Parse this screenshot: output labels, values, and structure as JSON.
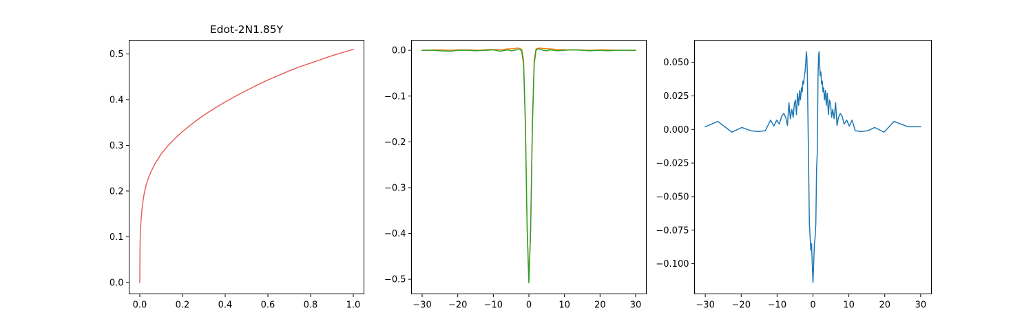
{
  "chart_data": [
    {
      "type": "line",
      "title": "Edot-2N1.85Y",
      "xlabel": "",
      "ylabel": "",
      "xlim": [
        -0.05,
        1.05
      ],
      "ylim": [
        -0.025,
        0.53
      ],
      "xticks": [
        0.0,
        0.2,
        0.4,
        0.6,
        0.8,
        1.0
      ],
      "xtick_labels": [
        "0.0",
        "0.2",
        "0.4",
        "0.6",
        "0.8",
        "1.0"
      ],
      "yticks": [
        0.0,
        0.1,
        0.2,
        0.3,
        0.4,
        0.5
      ],
      "ytick_labels": [
        "0.0",
        "0.1",
        "0.2",
        "0.3",
        "0.4",
        "0.5"
      ],
      "grid": false,
      "series": [
        {
          "color": "#e8605c",
          "x": [
            0.0,
            0.001,
            0.002,
            0.004,
            0.006,
            0.008,
            0.01,
            0.015,
            0.02,
            0.03,
            0.04,
            0.05,
            0.07,
            0.1,
            0.13,
            0.16,
            0.2,
            0.25,
            0.3,
            0.35,
            0.4,
            0.45,
            0.5,
            0.55,
            0.6,
            0.65,
            0.7,
            0.75,
            0.8,
            0.85,
            0.9,
            0.95,
            1.0
          ],
          "y": [
            0.0,
            0.078,
            0.098,
            0.121,
            0.137,
            0.149,
            0.159,
            0.178,
            0.193,
            0.214,
            0.228,
            0.24,
            0.259,
            0.281,
            0.298,
            0.313,
            0.33,
            0.349,
            0.366,
            0.381,
            0.395,
            0.408,
            0.42,
            0.432,
            0.443,
            0.453,
            0.463,
            0.472,
            0.48,
            0.488,
            0.496,
            0.503,
            0.51
          ]
        }
      ]
    },
    {
      "type": "line",
      "title": "",
      "xlabel": "",
      "ylabel": "",
      "xlim": [
        -33.0,
        33.0
      ],
      "ylim": [
        -0.532,
        0.022
      ],
      "xticks": [
        -30,
        -20,
        -10,
        0,
        10,
        20,
        30
      ],
      "xtick_labels": [
        "−30",
        "−20",
        "−10",
        "0",
        "10",
        "20",
        "30"
      ],
      "yticks": [
        0.0,
        -0.1,
        -0.2,
        -0.3,
        -0.4,
        -0.5
      ],
      "ytick_labels": [
        "0.0",
        "−0.1",
        "−0.2",
        "−0.3",
        "−0.4",
        "−0.5"
      ],
      "grid": false,
      "series": [
        {
          "color": "#ff7f0e",
          "x": [
            -30,
            -25,
            -22,
            -20,
            -17,
            -14,
            -11,
            -8,
            -6,
            -4,
            -3,
            -2,
            -1.5,
            -1,
            -0.5,
            0,
            0.5,
            1,
            1.5,
            2,
            3,
            4,
            6,
            8,
            11,
            14,
            17,
            20,
            22,
            25,
            30
          ],
          "y": [
            0.0,
            0.001,
            0.0,
            0.001,
            0.001,
            0.0,
            0.002,
            0.001,
            0.003,
            0.004,
            0.005,
            0.002,
            -0.02,
            -0.15,
            -0.38,
            -0.505,
            -0.38,
            -0.15,
            -0.02,
            0.003,
            0.005,
            0.004,
            0.003,
            0.002,
            0.001,
            0.001,
            0.0,
            0.001,
            0.001,
            0.0,
            0.0
          ]
        },
        {
          "color": "#2ca02c",
          "x": [
            -30,
            -27,
            -25,
            -22,
            -20,
            -17,
            -15,
            -12,
            -10,
            -8,
            -6,
            -5,
            -4,
            -3,
            -2.5,
            -2,
            -1.5,
            -1,
            -0.5,
            0,
            0.5,
            1,
            1.5,
            2,
            2.5,
            3,
            4,
            5,
            6,
            8,
            10,
            12,
            15,
            17,
            20,
            22,
            25,
            27,
            30
          ],
          "y": [
            0.0,
            0.0,
            -0.001,
            -0.002,
            0.0,
            0.0,
            -0.001,
            0.0,
            0.001,
            -0.002,
            0.001,
            -0.001,
            0.0,
            0.002,
            0.003,
            -0.003,
            -0.03,
            -0.16,
            -0.39,
            -0.508,
            -0.39,
            -0.16,
            -0.03,
            0.0,
            0.003,
            0.003,
            0.0,
            -0.001,
            0.001,
            -0.001,
            0.0,
            0.001,
            0.0,
            -0.001,
            0.0,
            -0.001,
            0.0,
            0.0,
            0.0
          ]
        }
      ]
    },
    {
      "type": "line",
      "title": "",
      "xlabel": "",
      "ylabel": "",
      "xlim": [
        -33.0,
        33.0
      ],
      "ylim": [
        -0.1225,
        0.0665
      ],
      "xticks": [
        -30,
        -20,
        -10,
        0,
        10,
        20,
        30
      ],
      "xtick_labels": [
        "−30",
        "−20",
        "−10",
        "0",
        "10",
        "20",
        "30"
      ],
      "yticks": [
        0.05,
        0.025,
        0.0,
        -0.025,
        -0.05,
        -0.075,
        -0.1
      ],
      "ytick_labels": [
        "0.050",
        "0.025",
        "0.000",
        "−0.025",
        "−0.050",
        "−0.075",
        "−0.100"
      ],
      "grid": false,
      "series": [
        {
          "color": "#1f77b4",
          "x": [
            -30,
            -26.5,
            -22.6,
            -19.8,
            -17.2,
            -15.2,
            -13.3,
            -11.8,
            -10.9,
            -10.1,
            -9.4,
            -8.7,
            -8.1,
            -7.6,
            -7.1,
            -6.7,
            -6.3,
            -5.9,
            -5.5,
            -5.2,
            -4.9,
            -4.6,
            -4.3,
            -4.0,
            -3.7,
            -3.5,
            -3.2,
            -3.0,
            -2.8,
            -2.6,
            -2.4,
            -2.2,
            -2.0,
            -1.85,
            -1.7,
            -1.55,
            -1.4,
            -1.2,
            -1.0,
            -0.8,
            -0.6,
            -0.4,
            -0.2,
            0.0,
            0.2,
            0.4,
            0.6,
            0.8,
            1.0,
            1.2,
            1.4,
            1.55,
            1.7,
            1.85,
            2.0,
            2.2,
            2.4,
            2.6,
            2.8,
            3.0,
            3.2,
            3.5,
            3.7,
            4.0,
            4.3,
            4.6,
            4.9,
            5.2,
            5.5,
            5.9,
            6.3,
            6.7,
            7.1,
            7.6,
            8.1,
            8.7,
            9.4,
            10.1,
            10.9,
            11.8,
            13.3,
            15.2,
            17.2,
            19.8,
            22.6,
            26.5,
            30
          ],
          "y": [
            0.002,
            0.006,
            -0.002,
            0.0015,
            -0.001,
            -0.0015,
            -0.001,
            0.007,
            0.0025,
            0.007,
            0.004,
            0.01,
            0.012,
            0.009,
            0.003,
            0.02,
            0.008,
            0.015,
            0.009,
            0.019,
            0.022,
            0.011,
            0.027,
            0.018,
            0.029,
            0.022,
            0.031,
            0.028,
            0.036,
            0.034,
            0.04,
            0.043,
            0.05,
            0.058,
            0.054,
            0.04,
            0.01,
            -0.03,
            -0.07,
            -0.08,
            -0.09,
            -0.085,
            -0.1,
            -0.114,
            -0.1,
            -0.085,
            -0.08,
            -0.07,
            -0.03,
            -0.017,
            0.038,
            0.055,
            0.058,
            0.049,
            0.04,
            0.043,
            0.034,
            0.036,
            0.028,
            0.031,
            0.022,
            0.029,
            0.018,
            0.027,
            0.011,
            0.022,
            0.019,
            0.009,
            0.015,
            0.008,
            0.02,
            0.003,
            0.009,
            0.012,
            0.01,
            0.004,
            0.007,
            0.0025,
            0.007,
            -0.001,
            -0.0015,
            -0.001,
            0.0015,
            -0.002,
            0.006,
            0.002,
            0.002
          ]
        }
      ]
    }
  ]
}
